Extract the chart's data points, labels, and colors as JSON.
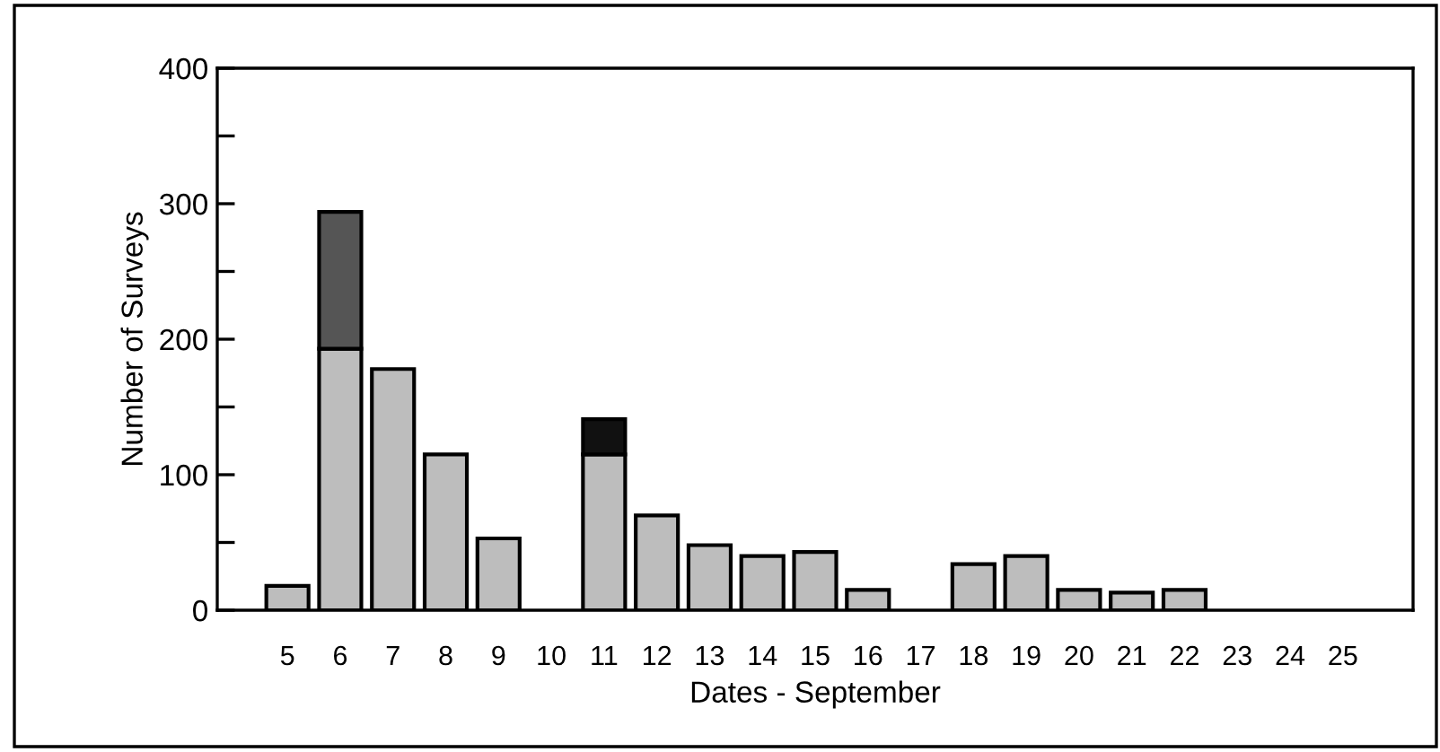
{
  "chart_data": {
    "type": "bar",
    "stacked": true,
    "xlabel": "Dates - September",
    "ylabel": "Number of Surveys",
    "categories": [
      "5",
      "6",
      "7",
      "8",
      "9",
      "10",
      "11",
      "12",
      "13",
      "14",
      "15",
      "16",
      "17",
      "18",
      "19",
      "20",
      "21",
      "22",
      "23",
      "24",
      "25"
    ],
    "series": [
      {
        "color": "#bdbdbd",
        "values": [
          18,
          193,
          178,
          115,
          53,
          0,
          115,
          70,
          48,
          40,
          43,
          15,
          0,
          34,
          40,
          15,
          13,
          15,
          null,
          0,
          null
        ]
      },
      {
        "colors": [
          "#555555",
          "#555555",
          "#555555",
          "#555555",
          "#555555",
          "#555555",
          "#111111",
          "#555555",
          "#555555",
          "#555555",
          "#555555",
          "#555555",
          "#555555",
          "#555555",
          "#555555",
          "#555555",
          "#555555",
          "#555555",
          "#555555",
          "#555555",
          "#555555"
        ],
        "values": [
          null,
          101,
          null,
          null,
          null,
          null,
          26,
          null,
          null,
          null,
          null,
          null,
          null,
          null,
          null,
          null,
          null,
          null,
          null,
          null,
          null
        ]
      }
    ],
    "ylim": [
      0,
      400
    ],
    "yticks": [
      0,
      {
        "value": 50,
        "label": null
      },
      100,
      {
        "value": 150,
        "label": null
      },
      200,
      {
        "value": 250,
        "label": null
      },
      300,
      {
        "value": 350,
        "label": null
      },
      400
    ],
    "grid": false,
    "legend": false
  }
}
